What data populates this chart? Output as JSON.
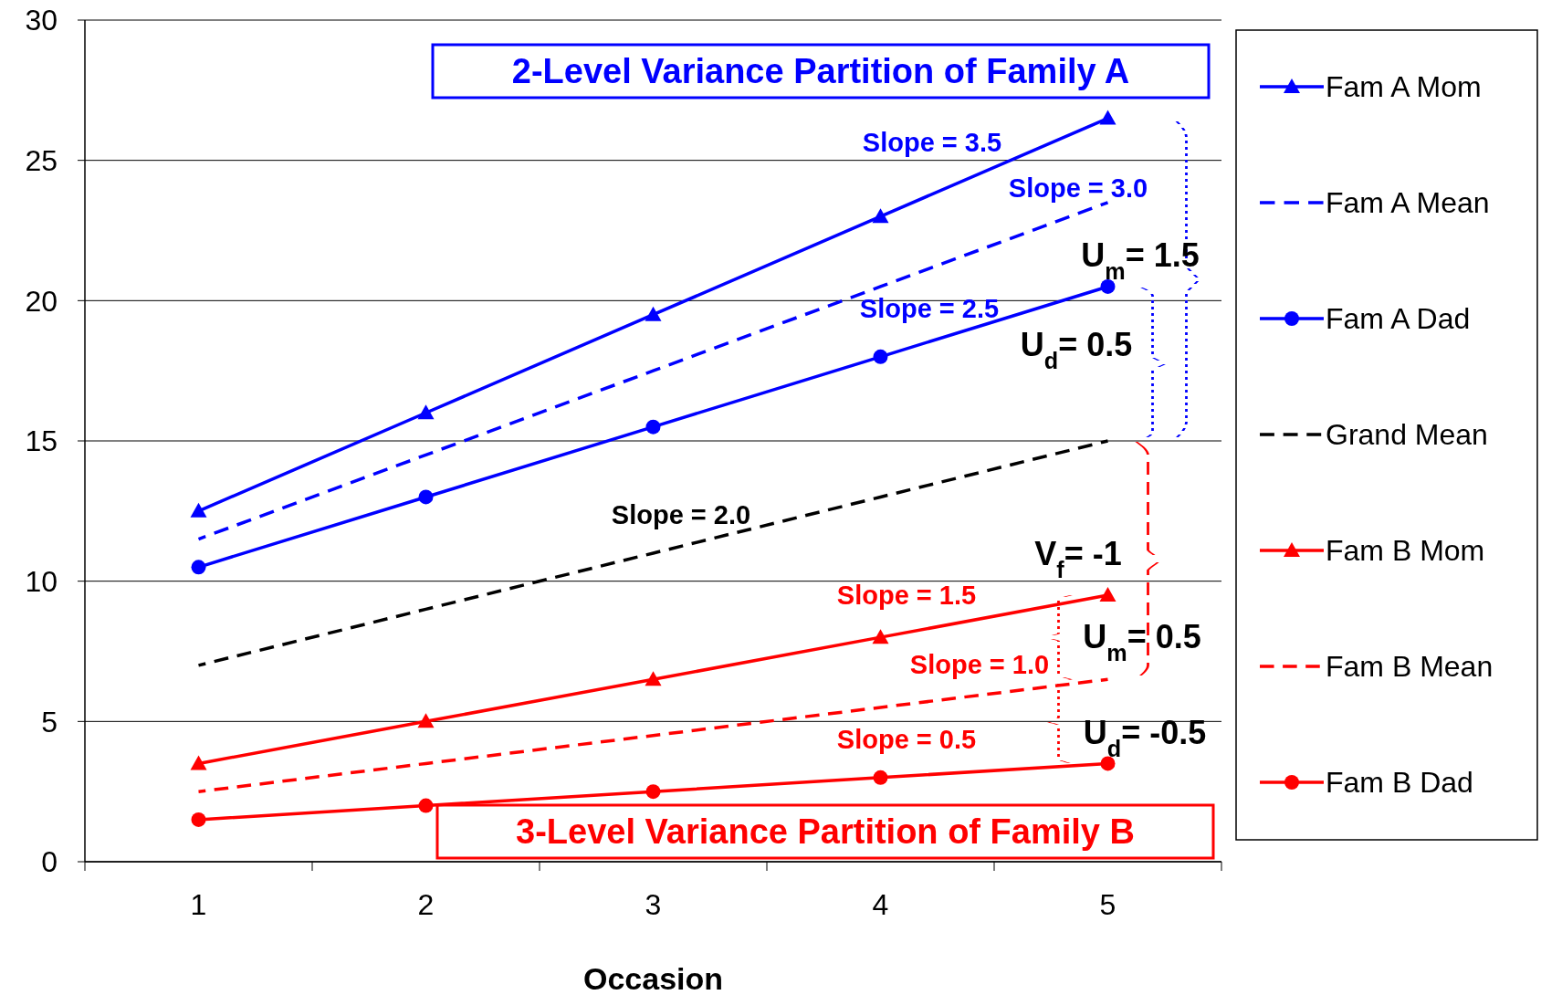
{
  "chart_data": {
    "type": "line",
    "xlabel": "Occasion",
    "categories": [
      "1",
      "2",
      "3",
      "4",
      "5"
    ],
    "ylim": [
      0,
      30
    ],
    "yticks": [
      0,
      5,
      10,
      15,
      20,
      25,
      30
    ],
    "grid": "y",
    "legend": "right",
    "series": [
      {
        "name": "Fam A Mom",
        "color": "#0000ff",
        "values": [
          12.5,
          16,
          19.5,
          23,
          26.5
        ],
        "marker": "triangle",
        "line_style": "solid"
      },
      {
        "name": "Fam A Mean",
        "color": "#0000ff",
        "values": [
          11.5,
          14.5,
          17.5,
          20.5,
          23.5
        ],
        "marker": "none",
        "line_style": "dashed"
      },
      {
        "name": "Fam A Dad",
        "color": "#0000ff",
        "values": [
          10.5,
          13,
          15.5,
          18,
          20.5
        ],
        "marker": "circle",
        "line_style": "solid"
      },
      {
        "name": "Grand Mean",
        "color": "#000000",
        "values": [
          7,
          9,
          11,
          13,
          15
        ],
        "marker": "none",
        "line_style": "dashed"
      },
      {
        "name": "Fam B Mom",
        "color": "#ff0000",
        "values": [
          3.5,
          5,
          6.5,
          8,
          9.5
        ],
        "marker": "triangle",
        "line_style": "solid"
      },
      {
        "name": "Fam B Mean",
        "color": "#ff0000",
        "values": [
          2.5,
          3.5,
          4.5,
          5.5,
          6.5
        ],
        "marker": "none",
        "line_style": "dashed"
      },
      {
        "name": "Fam B Dad",
        "color": "#ff0000",
        "values": [
          1.5,
          2,
          2.5,
          3,
          3.5
        ],
        "marker": "circle",
        "line_style": "solid"
      }
    ],
    "annotations": [
      "2-Level Variance Partition of Family A",
      "3-Level Variance Partition of Family B",
      "Slope = 3.5",
      "Slope = 3.0",
      "Slope = 2.5",
      "Slope = 2.0",
      "Slope = 1.5",
      "Slope = 1.0",
      "Slope = 0.5",
      "U$_{m}$= 1.5",
      "U$_{d}$= 0.5",
      "V$_{f}$= -1",
      "U$_{m}$= 0.5",
      "U$_{d}$= -0.5"
    ]
  }
}
